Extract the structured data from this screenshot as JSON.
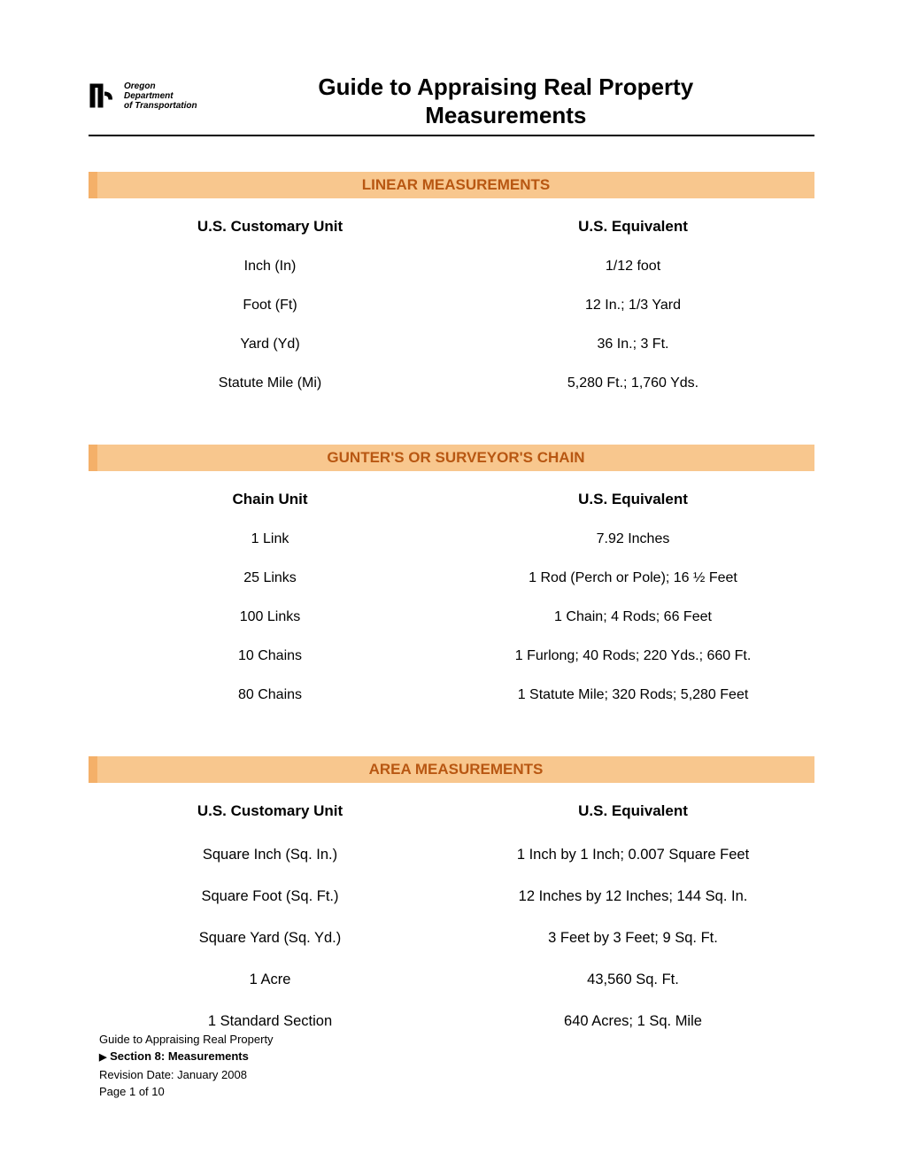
{
  "header": {
    "logo": {
      "org_line1": "Oregon",
      "org_line2": "Department",
      "org_line3": "of Transportation"
    },
    "title_line1": "Guide to Appraising Real Property",
    "title_line2": "Measurements"
  },
  "sections": [
    {
      "banner": "LINEAR MEASUREMENTS",
      "left_head": "U.S. Customary Unit",
      "right_head": "U.S. Equivalent",
      "class": "linear",
      "rows": [
        {
          "left": "Inch (In)",
          "right": "1/12 foot"
        },
        {
          "left": "Foot (Ft)",
          "right": "12 In.; 1/3 Yard"
        },
        {
          "left": "Yard (Yd)",
          "right": "36 In.; 3 Ft."
        },
        {
          "left": "Statute Mile (Mi)",
          "right": "5,280 Ft.; 1,760 Yds."
        }
      ]
    },
    {
      "banner": "GUNTER'S OR SURVEYOR'S CHAIN",
      "left_head": "Chain Unit",
      "right_head": "U.S. Equivalent",
      "class": "chain",
      "rows": [
        {
          "left": "1 Link",
          "right": "7.92 Inches"
        },
        {
          "left": "25 Links",
          "right": "1 Rod (Perch or Pole); 16 ½ Feet"
        },
        {
          "left": "100 Links",
          "right": "1 Chain; 4 Rods; 66 Feet"
        },
        {
          "left": "10 Chains",
          "right": "1 Furlong; 40 Rods; 220 Yds.; 660 Ft."
        },
        {
          "left": "80 Chains",
          "right": "1 Statute Mile; 320 Rods; 5,280 Feet"
        }
      ]
    },
    {
      "banner": "AREA MEASUREMENTS",
      "left_head": "U.S. Customary Unit",
      "right_head": "U.S. Equivalent",
      "class": "area",
      "rows": [
        {
          "left": "Square Inch (Sq. In.)",
          "right": "1 Inch by 1 Inch; 0.007 Square Feet"
        },
        {
          "left": "Square Foot (Sq. Ft.)",
          "right": "12 Inches by 12 Inches;  144 Sq. In."
        },
        {
          "left": "Square Yard (Sq. Yd.)",
          "right": "3 Feet by 3 Feet; 9 Sq. Ft."
        },
        {
          "left": "1 Acre",
          "right": "43,560 Sq. Ft."
        },
        {
          "left": "1 Standard Section",
          "right": "640 Acres; 1 Sq. Mile"
        }
      ]
    }
  ],
  "footer": {
    "line1": "Guide to Appraising Real Property",
    "line2": "Section 8: Measurements",
    "line3": "Revision Date: January 2008",
    "line4": "Page 1 of 10"
  },
  "style": {
    "banner_bg": "#f8c78e",
    "banner_accent": "#f4b069",
    "banner_text_color": "#b85712",
    "body_text_color": "#000000",
    "page_bg": "#ffffff"
  }
}
